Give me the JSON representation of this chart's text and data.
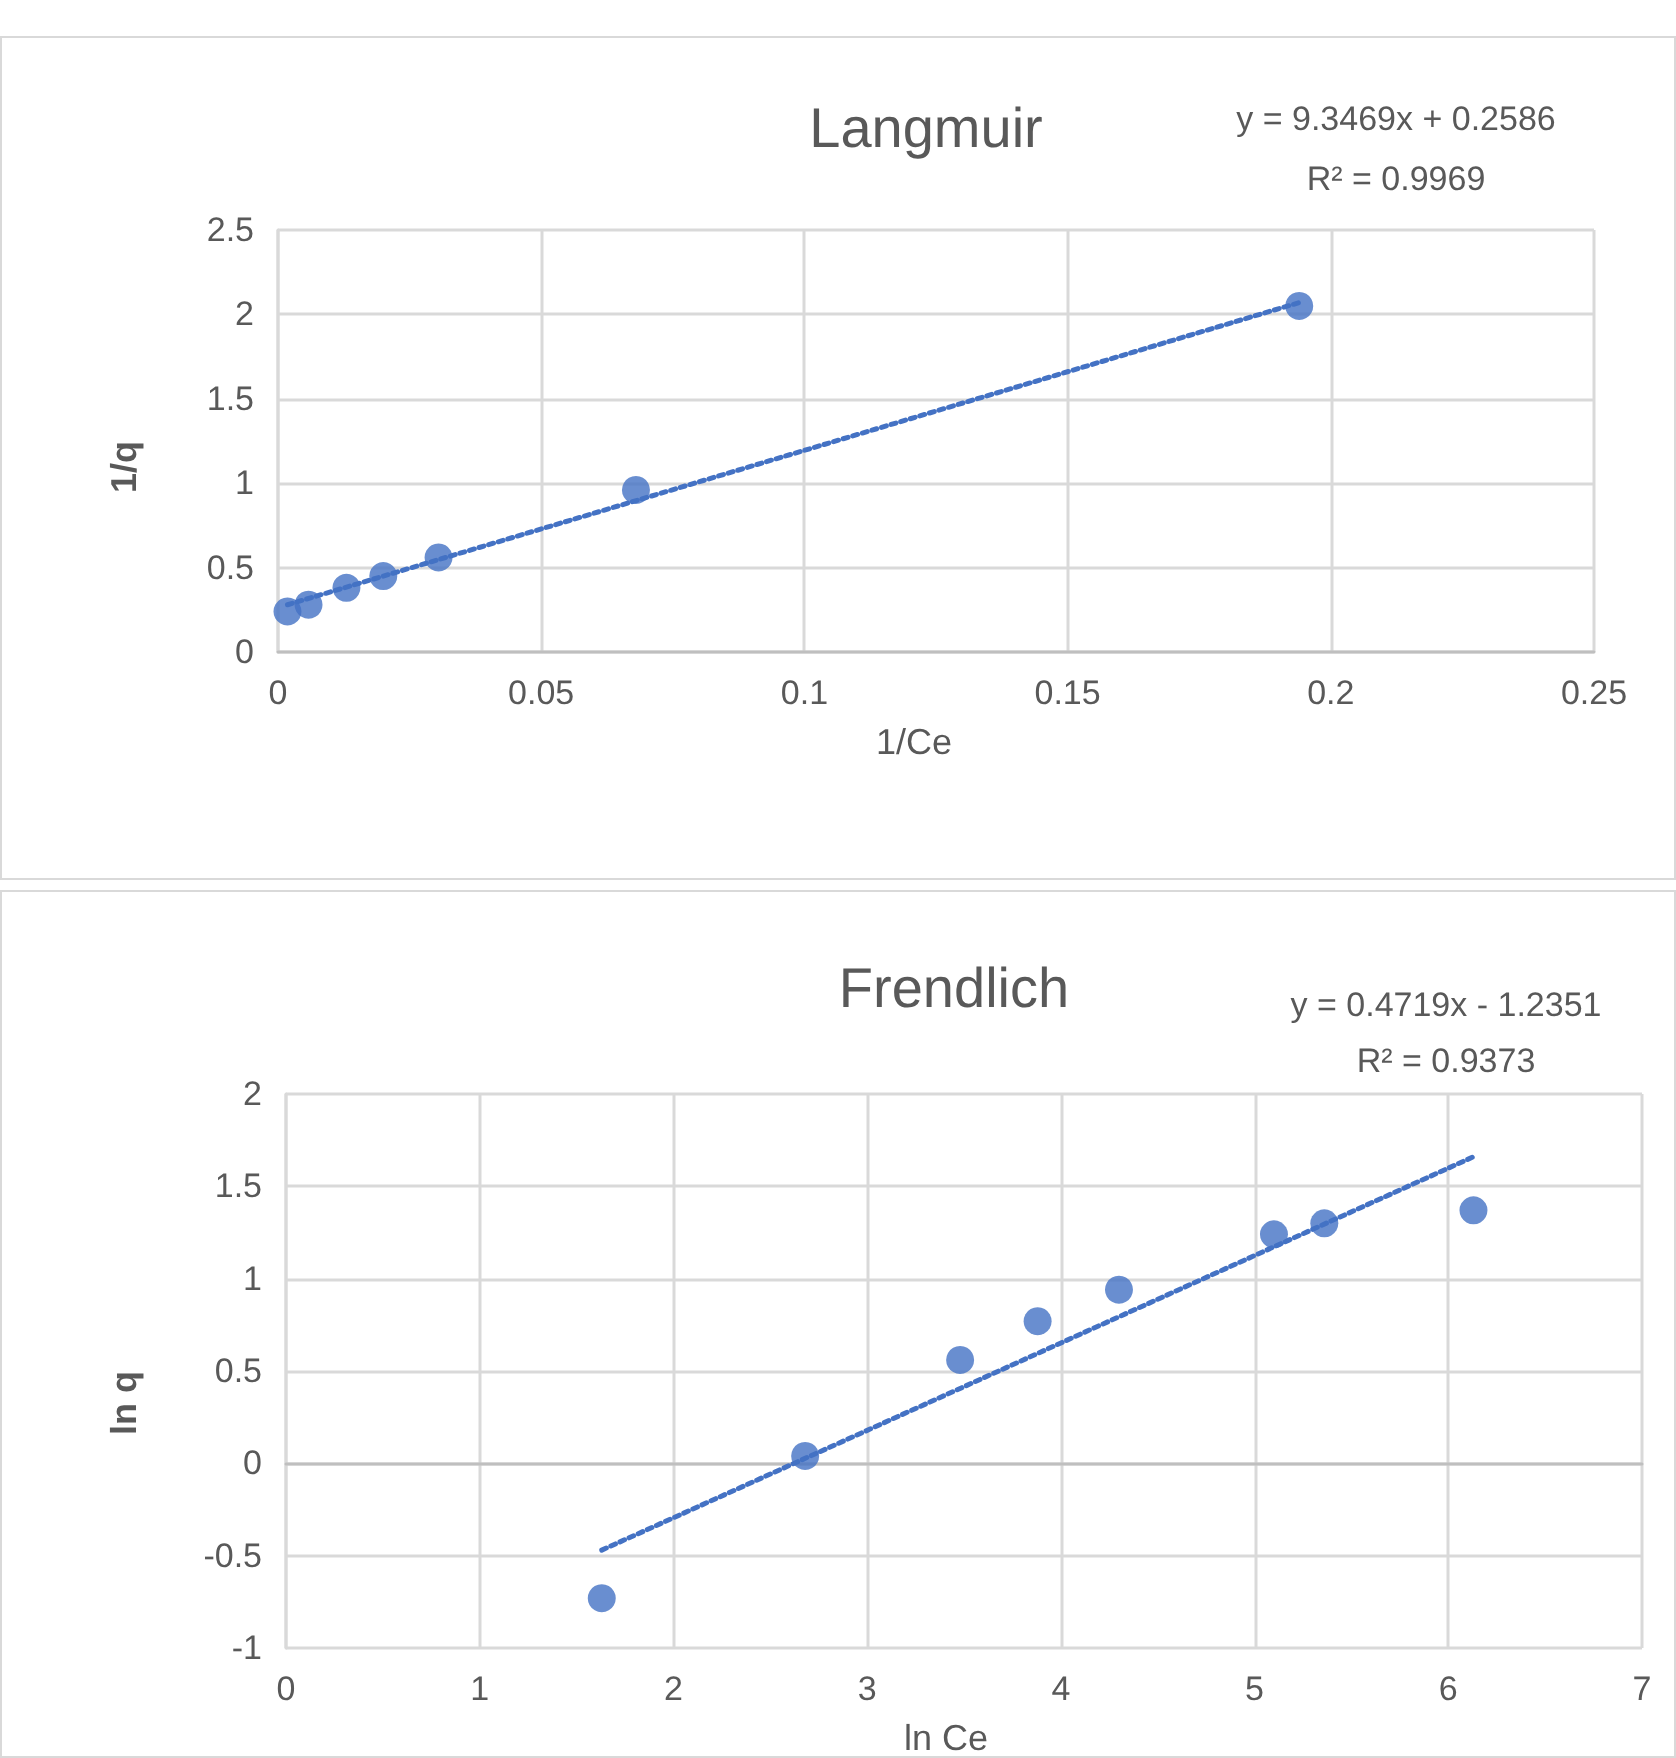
{
  "chart_data": [
    {
      "type": "scatter",
      "title": "Langmuir",
      "xlabel": "1/Ce",
      "ylabel": "1/q",
      "annotations": [
        "y = 9.3469x + 0.2586",
        "R² = 0.9969"
      ],
      "x": [
        0.0018,
        0.0058,
        0.013,
        0.02,
        0.0305,
        0.068,
        0.194
      ],
      "series": [
        {
          "type": "scatter",
          "color": "#4472c4",
          "marker": "circle",
          "values": [
            0.24,
            0.28,
            0.38,
            0.45,
            0.56,
            0.96,
            2.05
          ]
        },
        {
          "type": "line",
          "color": "#4472c4",
          "marker": "none",
          "line_style": "dotted",
          "x": [
            0.0018,
            0.194
          ],
          "values": [
            0.28,
            2.07
          ]
        }
      ],
      "xlim": [
        0,
        0.25
      ],
      "xticks": [
        0,
        0.05,
        0.1,
        0.15,
        0.2,
        0.25
      ],
      "ylim": [
        0,
        2.5
      ],
      "yticks": [
        0,
        0.5,
        1,
        1.5,
        2,
        2.5
      ],
      "grid": true
    },
    {
      "type": "scatter",
      "title": "Frendlich",
      "xlabel": "ln Ce",
      "ylabel": "ln q",
      "annotations": [
        "y = 0.4719x - 1.2351",
        "R² = 0.9373"
      ],
      "x": [
        1.63,
        2.68,
        3.48,
        3.88,
        4.3,
        5.1,
        5.36,
        6.13
      ],
      "series": [
        {
          "type": "scatter",
          "color": "#4472c4",
          "marker": "circle",
          "values": [
            -0.73,
            0.04,
            0.56,
            0.77,
            0.94,
            1.24,
            1.3,
            1.37
          ]
        },
        {
          "type": "line",
          "color": "#4472c4",
          "marker": "none",
          "line_style": "dotted",
          "x": [
            1.63,
            6.13
          ],
          "values": [
            -0.47,
            1.66
          ]
        }
      ],
      "xlim": [
        0,
        7
      ],
      "xticks": [
        0,
        1,
        2,
        3,
        4,
        5,
        6,
        7
      ],
      "ylim": [
        -1,
        2
      ],
      "yticks": [
        -1,
        -0.5,
        0,
        0.5,
        1,
        1.5,
        2
      ],
      "grid": true
    }
  ]
}
